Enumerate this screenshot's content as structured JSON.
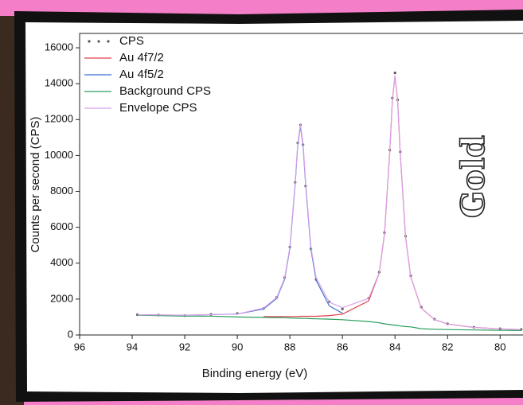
{
  "chart_data": {
    "type": "line",
    "x_label": "Binding energy (eV)",
    "y_label": "Counts per second (CPS)",
    "annotation": "Gold",
    "x": [
      93.8,
      93,
      92,
      91,
      90,
      89,
      88.5,
      88.2,
      88,
      87.8,
      87.7,
      87.6,
      87.5,
      87.4,
      87.2,
      87,
      86.5,
      86,
      85,
      84.6,
      84.4,
      84.2,
      84.1,
      84,
      83.9,
      83.8,
      83.6,
      83.4,
      83,
      82.5,
      82,
      81,
      80,
      79.2
    ],
    "series": [
      {
        "name": "CPS",
        "color": "#555555",
        "marker": "dots",
        "values": [
          1130,
          1110,
          1080,
          1150,
          1200,
          1480,
          2100,
          3200,
          4900,
          8500,
          10700,
          11700,
          10600,
          8300,
          4800,
          3100,
          1850,
          1450,
          2050,
          3500,
          5700,
          10300,
          13200,
          14600,
          13100,
          10200,
          5500,
          3300,
          1550,
          880,
          620,
          430,
          350,
          310
        ]
      },
      {
        "name": "Au 4f7/2",
        "color": "#e0404a",
        "values": [
          null,
          null,
          null,
          null,
          null,
          1030,
          1020,
          1030,
          1030,
          1030,
          1030,
          1040,
          1040,
          1040,
          1040,
          1040,
          1080,
          1160,
          1900,
          3460,
          5630,
          10200,
          13070,
          14450,
          13040,
          10120,
          5480,
          3230,
          1500,
          860,
          610,
          420,
          340,
          300
        ]
      },
      {
        "name": "Au 4f5/2",
        "color": "#3f6fd0",
        "values": [
          1125,
          1113,
          1100,
          1133,
          1165,
          1450,
          2040,
          3100,
          4800,
          8350,
          10560,
          11630,
          10550,
          8330,
          4760,
          3040,
          1620,
          1210,
          null,
          null,
          null,
          null,
          null,
          null,
          null,
          null,
          null,
          null,
          null,
          null,
          null,
          null,
          null,
          null
        ]
      },
      {
        "name": "Background CPS",
        "color": "#2a9d5c",
        "values": [
          1100,
          1080,
          1050,
          1050,
          1000,
          980,
          970,
          960,
          950,
          940,
          930,
          930,
          920,
          920,
          910,
          900,
          880,
          850,
          750,
          680,
          620,
          580,
          560,
          550,
          530,
          500,
          470,
          450,
          350,
          320,
          300,
          280,
          260,
          250
        ]
      },
      {
        "name": "Envelope CPS",
        "color": "#d9a2ea",
        "values": [
          1125,
          1113,
          1100,
          1133,
          1165,
          1500,
          2090,
          3170,
          4880,
          8440,
          10660,
          11740,
          10670,
          8450,
          4890,
          3180,
          1820,
          1520,
          2040,
          3480,
          5640,
          10200,
          13070,
          14450,
          13040,
          10120,
          5480,
          3230,
          1500,
          860,
          610,
          420,
          340,
          300
        ]
      }
    ],
    "xlim": [
      96,
      79.1
    ],
    "ylim": [
      0,
      16800
    ],
    "xticks": [
      96,
      94,
      92,
      90,
      88,
      86,
      84,
      82,
      80
    ],
    "yticks": [
      0,
      2000,
      4000,
      6000,
      8000,
      10000,
      12000,
      14000,
      16000
    ],
    "legend": "upper-left"
  }
}
